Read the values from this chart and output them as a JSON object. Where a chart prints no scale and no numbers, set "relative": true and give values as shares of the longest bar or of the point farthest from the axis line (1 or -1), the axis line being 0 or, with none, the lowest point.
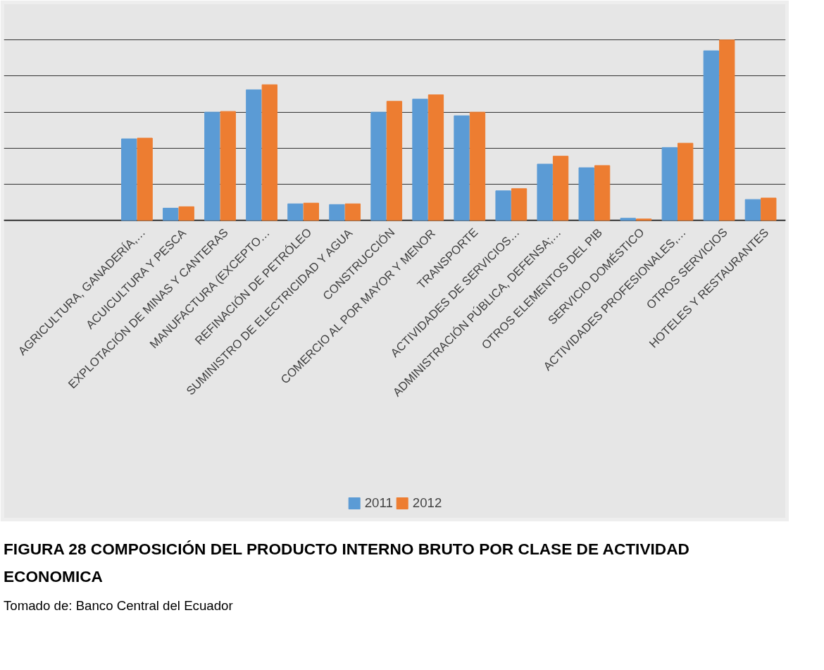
{
  "chart_data": {
    "type": "bar",
    "relative": true,
    "title": "FIGURA 28 COMPOSICIÓN DEL PRODUCTO INTERNO BRUTO POR CLASE DE ACTIVIDAD ECONOMICA",
    "annotations": [
      "Tomado de: Banco Central del Ecuador"
    ],
    "categories": [
      "AGRICULTURA, GANADERÍA,…",
      "ACUICULTURA Y PESCA",
      "EXPLOTACIÓN DE MINAS Y CANTERAS",
      "MANUFACTURA (EXCEPTO…",
      "REFINACIÓN DE PETRÓLEO",
      "SUMINISTRO DE ELECTRICIDAD Y AGUA",
      "CONSTRUCCIÓN",
      "COMERCIO AL POR MAYOR Y MENOR",
      "TRANSPORTE",
      "ACTIVIDADES DE SERVICIOS…",
      "ADMINISTRACIÓN PÚBLICA, DEFENSA;…",
      "OTROS ELEMENTOS DEL PIB",
      "SERVICIO DOMÉSTICO",
      "ACTIVIDADES PROFESIONALES,…",
      "OTROS SERVICIOS",
      "HOTELES Y RESTAURANTES"
    ],
    "series": [
      {
        "name": "2011",
        "color": "#5b9bd5",
        "values": [
          0.452,
          0.068,
          0.6,
          0.724,
          0.092,
          0.088,
          0.6,
          0.672,
          0.58,
          0.164,
          0.312,
          0.292,
          0.012,
          0.404,
          0.94,
          0.116
        ]
      },
      {
        "name": "2012",
        "color": "#ed7d31",
        "values": [
          0.456,
          0.076,
          0.604,
          0.752,
          0.096,
          0.092,
          0.66,
          0.696,
          0.6,
          0.176,
          0.356,
          0.304,
          0.008,
          0.428,
          1.0,
          0.124
        ]
      }
    ],
    "grid": "y",
    "legend": "bottom"
  }
}
